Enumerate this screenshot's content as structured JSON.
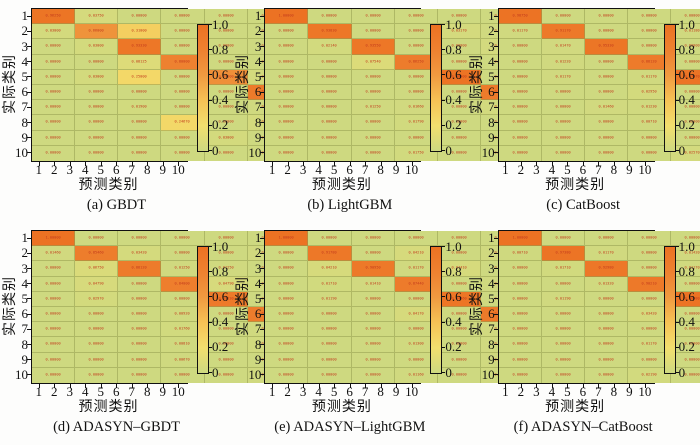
{
  "figure": {
    "xlabel": "预测类别",
    "ylabel": "实际类别",
    "x_ticks": [
      "1",
      "2",
      "3",
      "4",
      "5",
      "6",
      "7",
      "8",
      "9",
      "10"
    ],
    "y_ticks": [
      "1",
      "2",
      "3",
      "4",
      "5",
      "6",
      "7",
      "8",
      "9",
      "10"
    ],
    "cell_text_color": "#c23a1c",
    "grid_line_color": "#949c4e",
    "value_decimals": 5,
    "colorbar": {
      "min": 0,
      "max": 1,
      "tick_labels": [
        "1.0",
        "0.8",
        "0.6",
        "0.4",
        "0.2",
        "0"
      ],
      "gradient": [
        {
          "at": 0.0,
          "color": "#ced980"
        },
        {
          "at": 0.2,
          "color": "#f2df6e"
        },
        {
          "at": 0.4,
          "color": "#f6c255"
        },
        {
          "at": 0.6,
          "color": "#f09a40"
        },
        {
          "at": 0.8,
          "color": "#ee8130"
        },
        {
          "at": 1.0,
          "color": "#ec7223"
        }
      ]
    }
  },
  "chart_data": {
    "type": "heatmap",
    "layout": {
      "rows": 2,
      "cols": 3
    },
    "x_categories": [
      "1",
      "2",
      "3",
      "4",
      "5",
      "6",
      "7",
      "8",
      "9",
      "10"
    ],
    "y_categories": [
      "1",
      "2",
      "3",
      "4",
      "5",
      "6",
      "7",
      "8",
      "9",
      "10"
    ],
    "xlabel": "预测类别",
    "ylabel": "实际类别",
    "value_range": [
      0,
      1
    ],
    "panels": [
      {
        "id": "a",
        "caption": "(a) GBDT",
        "diagonal": [
          0.9625,
          0.66,
          0.9333,
          0.8,
          0.69,
          0.9,
          0.837,
          0.6623,
          0.92,
          0.994
        ],
        "off_diagonal": [
          [
            1,
            2,
            0.0375
          ],
          [
            2,
            1,
            0.03
          ],
          [
            2,
            3,
            0.31
          ],
          [
            3,
            2,
            0.03
          ],
          [
            3,
            8,
            0.0367
          ],
          [
            4,
            3,
            0.08125
          ],
          [
            4,
            7,
            0.0625
          ],
          [
            4,
            8,
            0.0375
          ],
          [
            4,
            9,
            0.01875
          ],
          [
            5,
            2,
            0.03
          ],
          [
            5,
            3,
            0.25
          ],
          [
            5,
            6,
            0.03
          ],
          [
            6,
            7,
            0.04
          ],
          [
            6,
            10,
            0.06
          ],
          [
            7,
            3,
            0.019
          ],
          [
            7,
            6,
            0.013
          ],
          [
            7,
            10,
            0.131
          ],
          [
            8,
            4,
            0.2467
          ],
          [
            8,
            6,
            0.031
          ],
          [
            8,
            9,
            0.06
          ],
          [
            9,
            5,
            0.03
          ],
          [
            9,
            8,
            0.02
          ],
          [
            9,
            10,
            0.03
          ],
          [
            10,
            6,
            0.006
          ]
        ]
      },
      {
        "id": "b",
        "caption": "(b) LightGBM",
        "diagonal": [
          1.0,
          0.9383,
          0.9355,
          0.8625,
          0.98,
          0.88,
          0.9125,
          0.88,
          0.97,
          0.9042
        ],
        "off_diagonal": [
          [
            2,
            5,
            0.0317
          ],
          [
            2,
            6,
            0.0101
          ],
          [
            3,
            2,
            0.0214
          ],
          [
            3,
            6,
            0.0252
          ],
          [
            3,
            8,
            0.0179
          ],
          [
            4,
            3,
            0.0754
          ],
          [
            4,
            7,
            0.0195
          ],
          [
            4,
            8,
            0.0141
          ],
          [
            4,
            10,
            0.0225
          ],
          [
            6,
            8,
            0.0256
          ],
          [
            6,
            9,
            0.0139
          ],
          [
            6,
            10,
            0.0117
          ],
          [
            7,
            3,
            0.0125
          ],
          [
            7,
            4,
            0.0166
          ],
          [
            7,
            6,
            0.0233
          ],
          [
            7,
            10,
            0.0441
          ],
          [
            8,
            4,
            0.0179
          ],
          [
            8,
            7,
            0.0326
          ],
          [
            8,
            9,
            0.0217
          ],
          [
            8,
            10,
            0.0071
          ],
          [
            10,
            4,
            0.0175
          ],
          [
            10,
            7,
            0.0179
          ],
          [
            10,
            8,
            0.0471
          ],
          [
            10,
            9,
            0.0133
          ]
        ]
      },
      {
        "id": "c",
        "caption": "(c) CatBoost",
        "diagonal": [
          0.9875,
          0.9117,
          0.9533,
          0.8812,
          0.9767,
          0.9,
          0.9233,
          0.8933,
          0.9512,
          0.9308
        ],
        "off_diagonal": [
          [
            2,
            1,
            0.0117
          ],
          [
            2,
            5,
            0.0118
          ],
          [
            3,
            2,
            0.0147
          ],
          [
            3,
            7,
            0.0144
          ],
          [
            4,
            2,
            0.0122
          ],
          [
            4,
            7,
            0.0757
          ],
          [
            4,
            8,
            0.0071
          ],
          [
            4,
            9,
            0.0219
          ],
          [
            4,
            10,
            0.0131
          ],
          [
            5,
            2,
            0.0117
          ],
          [
            5,
            4,
            0.0117
          ],
          [
            6,
            4,
            0.0295
          ],
          [
            6,
            7,
            0.0173
          ],
          [
            6,
            8,
            0.0149
          ],
          [
            7,
            3,
            0.0146
          ],
          [
            7,
            4,
            0.0123
          ],
          [
            7,
            6,
            0.0091
          ],
          [
            7,
            10,
            0.0125
          ],
          [
            8,
            4,
            0.0071
          ],
          [
            8,
            7,
            0.0071
          ],
          [
            8,
            9,
            0.0219
          ],
          [
            9,
            6,
            0.0242
          ],
          [
            9,
            8,
            0.0117
          ],
          [
            10,
            5,
            0.0257
          ],
          [
            10,
            6,
            0.0287
          ],
          [
            10,
            7,
            0.0375
          ],
          [
            10,
            9,
            0.0117
          ]
        ]
      },
      {
        "id": "d",
        "caption": "(d) ADASYN–GBDT",
        "diagonal": [
          1.0,
          0.8546,
          0.8812,
          0.84,
          0.8933,
          0.8625,
          0.8462,
          0.8183,
          0.9368,
          0.8951
        ],
        "off_diagonal": [
          [
            2,
            1,
            0.0146
          ],
          [
            2,
            3,
            0.0342
          ],
          [
            2,
            6,
            0.0146
          ],
          [
            3,
            2,
            0.0675
          ],
          [
            3,
            4,
            0.0125
          ],
          [
            3,
            5,
            0.0125
          ],
          [
            3,
            8,
            0.0125
          ],
          [
            4,
            2,
            0.0479
          ],
          [
            4,
            5,
            0.0479
          ],
          [
            4,
            6,
            0.0172
          ],
          [
            4,
            7,
            0.0425
          ],
          [
            4,
            8,
            0.0358
          ],
          [
            4,
            10,
            0.0171
          ],
          [
            5,
            2,
            0.0297
          ],
          [
            6,
            4,
            0.0092
          ],
          [
            6,
            7,
            0.0185
          ],
          [
            6,
            8,
            0.0185
          ],
          [
            6,
            10,
            0.0479
          ],
          [
            7,
            4,
            0.0176
          ],
          [
            7,
            6,
            0.0086
          ],
          [
            7,
            10,
            0.0346
          ],
          [
            8,
            4,
            0.0081
          ],
          [
            8,
            6,
            0.0182
          ],
          [
            8,
            9,
            0.0081
          ],
          [
            8,
            10,
            0.0192
          ],
          [
            9,
            4,
            0.0067
          ],
          [
            10,
            6,
            0.0131
          ],
          [
            10,
            7,
            0.0122
          ],
          [
            10,
            8,
            0.0297
          ]
        ]
      },
      {
        "id": "e",
        "caption": "(e) ADASYN–LightGBM",
        "diagonal": [
          1.0,
          0.9178,
          0.9095,
          0.8744,
          0.9486,
          0.8917,
          0.8988,
          0.8833,
          0.9441,
          0.9228
        ],
        "off_diagonal": [
          [
            2,
            4,
            0.0421
          ],
          [
            2,
            6,
            0.0114
          ],
          [
            3,
            2,
            0.0421
          ],
          [
            3,
            4,
            0.0117
          ],
          [
            3,
            5,
            0.0441
          ],
          [
            3,
            8,
            0.0441
          ],
          [
            4,
            2,
            0.0171
          ],
          [
            4,
            3,
            0.0141
          ],
          [
            4,
            6,
            0.0116
          ],
          [
            4,
            7,
            0.0194
          ],
          [
            4,
            8,
            0.0194
          ],
          [
            4,
            10,
            0.0181
          ],
          [
            5,
            2,
            0.0119
          ],
          [
            6,
            4,
            0.0417
          ],
          [
            6,
            7,
            0.0148
          ],
          [
            6,
            10,
            0.0108
          ],
          [
            7,
            6,
            0.015
          ],
          [
            7,
            10,
            0.0151
          ],
          [
            8,
            4,
            0.013
          ],
          [
            8,
            6,
            0.0122
          ],
          [
            8,
            9,
            0.0117
          ],
          [
            9,
            6,
            0.0112
          ],
          [
            10,
            4,
            0.0116
          ],
          [
            10,
            6,
            0.0136
          ],
          [
            10,
            9,
            0.0218
          ]
        ]
      },
      {
        "id": "f",
        "caption": "(f) ADASYN–CatBoost",
        "diagonal": [
          1.0,
          0.9738,
          0.9298,
          0.9021,
          0.9898,
          0.9425,
          0.9791,
          0.8985,
          0.9464,
          0.8794
        ],
        "off_diagonal": [
          [
            2,
            1,
            0.0071
          ],
          [
            2,
            3,
            0.0117
          ],
          [
            2,
            5,
            0.0142
          ],
          [
            3,
            2,
            0.0171
          ],
          [
            3,
            5,
            0.0117
          ],
          [
            3,
            8,
            0.0117
          ],
          [
            4,
            3,
            0.0132
          ],
          [
            4,
            6,
            0.0118
          ],
          [
            4,
            7,
            0.0171
          ],
          [
            4,
            9,
            0.0131
          ],
          [
            5,
            2,
            0.0119
          ],
          [
            6,
            4,
            0.0342
          ],
          [
            6,
            8,
            0.0183
          ],
          [
            6,
            10,
            0.0108
          ],
          [
            7,
            6,
            0.0087
          ],
          [
            7,
            8,
            0.0046
          ],
          [
            8,
            4,
            0.0117
          ],
          [
            8,
            6,
            0.0117
          ],
          [
            8,
            10,
            0.0101
          ],
          [
            9,
            6,
            0.0143
          ],
          [
            10,
            4,
            0.0219
          ],
          [
            10,
            6,
            0.0475
          ],
          [
            10,
            8,
            0.0271
          ],
          [
            10,
            9,
            0.0271
          ]
        ]
      }
    ]
  }
}
